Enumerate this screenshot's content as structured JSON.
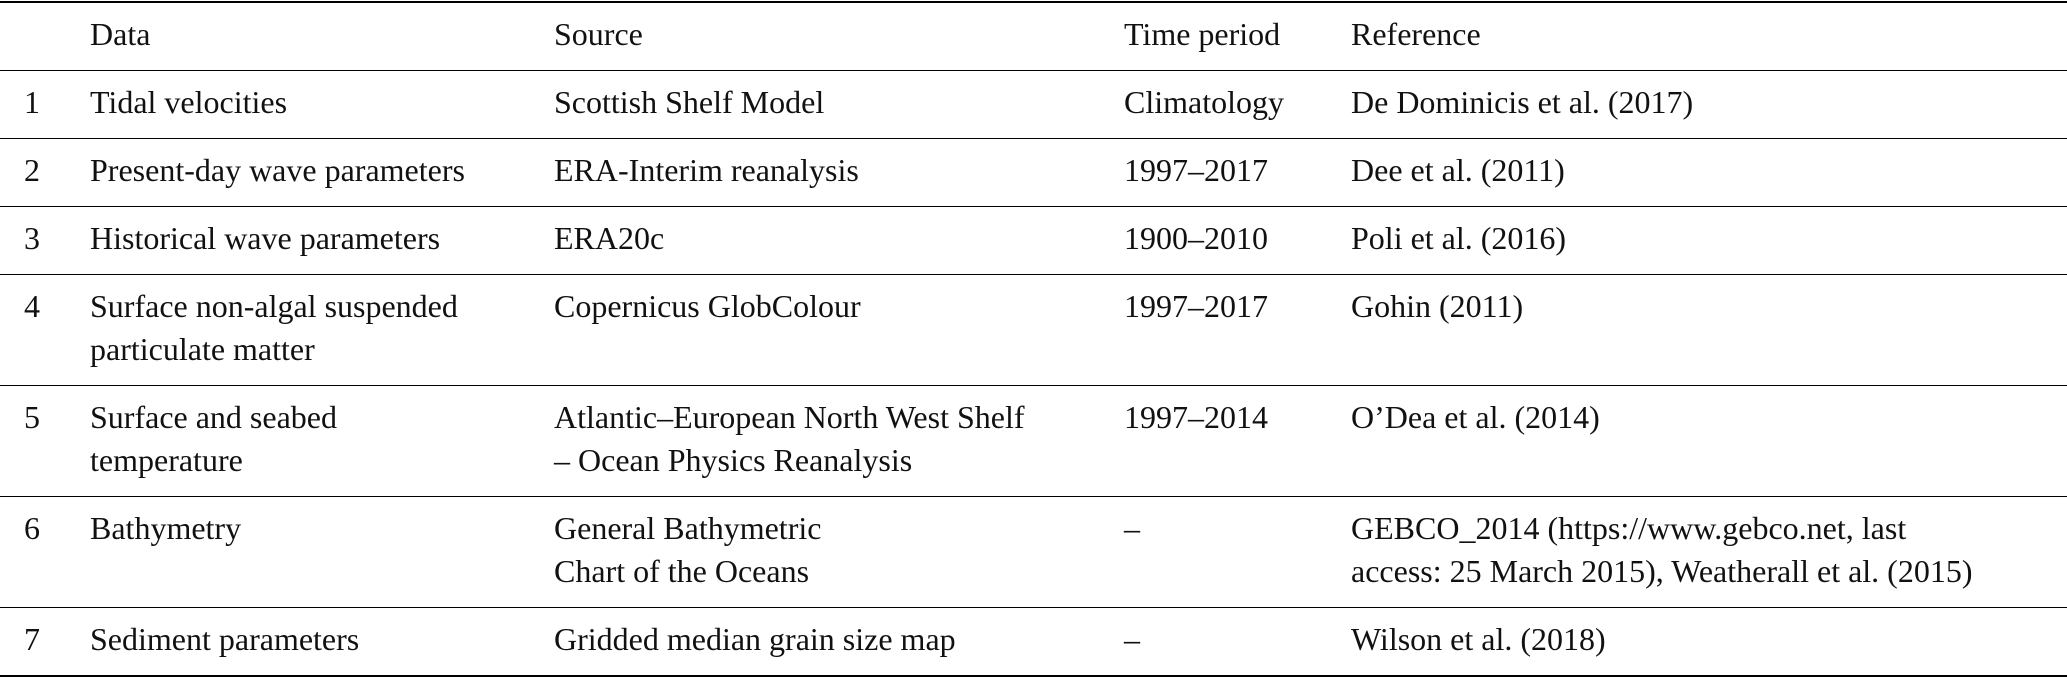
{
  "table": {
    "header": [
      "",
      "Data",
      "Source",
      "Time period",
      "Reference"
    ],
    "rows": [
      [
        [
          "1"
        ],
        [
          "Tidal velocities"
        ],
        [
          "Scottish Shelf Model"
        ],
        [
          "Climatology"
        ],
        [
          "De Dominicis et al. (2017)"
        ]
      ],
      [
        [
          "2"
        ],
        [
          "Present-day wave parameters"
        ],
        [
          "ERA-Interim reanalysis"
        ],
        [
          "1997–2017"
        ],
        [
          "Dee et al. (2011)"
        ]
      ],
      [
        [
          "3"
        ],
        [
          "Historical wave parameters"
        ],
        [
          "ERA20c"
        ],
        [
          "1900–2010"
        ],
        [
          "Poli et al. (2016)"
        ]
      ],
      [
        [
          "4"
        ],
        [
          "Surface non-algal suspended",
          "particulate matter"
        ],
        [
          "Copernicus GlobColour"
        ],
        [
          "1997–2017"
        ],
        [
          "Gohin (2011)"
        ]
      ],
      [
        [
          "5"
        ],
        [
          "Surface and seabed",
          "temperature"
        ],
        [
          "Atlantic–European North West Shelf",
          "– Ocean Physics Reanalysis"
        ],
        [
          "1997–2014"
        ],
        [
          "O’Dea et al. (2014)"
        ]
      ],
      [
        [
          "6"
        ],
        [
          "Bathymetry"
        ],
        [
          "General Bathymetric",
          "Chart of the Oceans"
        ],
        [
          "–"
        ],
        [
          "GEBCO_2014 (https://www.gebco.net, last",
          "access: 25 March 2015), Weatherall et al. (2015)"
        ]
      ],
      [
        [
          "7"
        ],
        [
          "Sediment parameters"
        ],
        [
          "Gridded median grain size map"
        ],
        [
          "–"
        ],
        [
          "Wilson et al. (2018)"
        ]
      ]
    ]
  }
}
